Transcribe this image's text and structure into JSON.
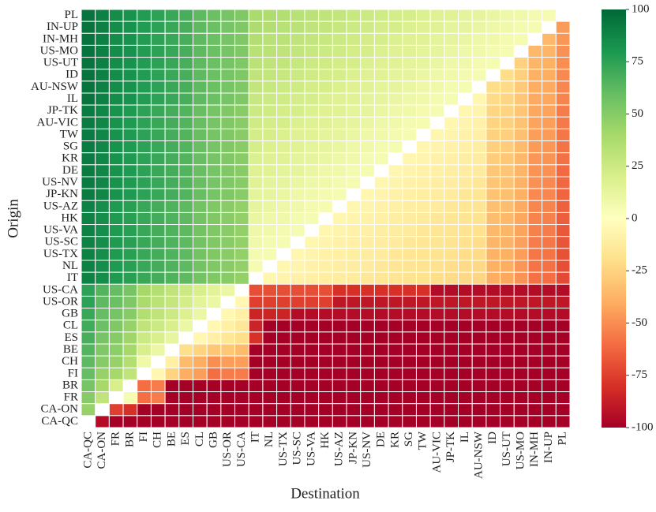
{
  "chart_data": {
    "type": "heatmap",
    "xlabel": "Destination",
    "ylabel": "Origin",
    "colormap": "RdYlGn",
    "x_categories": [
      "CA-QC",
      "CA-ON",
      "FR",
      "BR",
      "FI",
      "CH",
      "BE",
      "ES",
      "CL",
      "GB",
      "US-OR",
      "US-CA",
      "IT",
      "NL",
      "US-TX",
      "US-SC",
      "US-VA",
      "HK",
      "US-AZ",
      "JP-KN",
      "US-NV",
      "DE",
      "KR",
      "SG",
      "TW",
      "AU-VIC",
      "JP-TK",
      "IL",
      "AU-NSW",
      "ID",
      "US-UT",
      "US-MO",
      "IN-MH",
      "IN-UP",
      "PL"
    ],
    "y_categories": [
      "PL",
      "IN-UP",
      "IN-MH",
      "US-MO",
      "US-UT",
      "ID",
      "AU-NSW",
      "IL",
      "JP-TK",
      "AU-VIC",
      "TW",
      "SG",
      "KR",
      "DE",
      "US-NV",
      "JP-KN",
      "US-AZ",
      "HK",
      "US-VA",
      "US-SC",
      "US-TX",
      "NL",
      "IT",
      "US-CA",
      "US-OR",
      "GB",
      "CL",
      "ES",
      "BE",
      "CH",
      "FI",
      "BR",
      "FR",
      "CA-ON",
      "CA-QC"
    ],
    "z": [
      [
        95,
        90,
        85,
        82,
        78,
        75,
        72,
        68,
        62,
        58,
        55,
        52,
        38,
        37,
        35,
        33,
        32,
        30,
        29,
        27,
        25,
        24,
        22,
        21,
        19,
        17,
        16,
        14,
        13,
        11,
        9,
        8,
        6,
        5,
        null
      ],
      [
        95,
        90,
        85,
        82,
        78,
        75,
        72,
        68,
        62,
        58,
        55,
        52,
        37,
        35,
        33,
        32,
        30,
        29,
        27,
        25,
        24,
        22,
        21,
        19,
        17,
        16,
        14,
        13,
        11,
        9,
        8,
        6,
        5,
        null,
        -46
      ],
      [
        95,
        90,
        85,
        82,
        78,
        75,
        72,
        68,
        62,
        58,
        55,
        52,
        35,
        33,
        32,
        30,
        29,
        27,
        25,
        24,
        22,
        21,
        19,
        17,
        16,
        14,
        13,
        11,
        9,
        8,
        6,
        5,
        null,
        -36,
        -47
      ],
      [
        95,
        90,
        85,
        82,
        78,
        75,
        72,
        68,
        62,
        58,
        55,
        52,
        33,
        32,
        30,
        29,
        27,
        25,
        24,
        22,
        21,
        19,
        17,
        16,
        14,
        13,
        11,
        9,
        8,
        6,
        5,
        null,
        -36,
        -37,
        -49
      ],
      [
        95,
        90,
        85,
        82,
        78,
        75,
        72,
        68,
        62,
        58,
        55,
        52,
        32,
        30,
        29,
        27,
        25,
        24,
        22,
        21,
        19,
        17,
        16,
        14,
        13,
        11,
        9,
        8,
        6,
        5,
        null,
        -26,
        -37,
        -39,
        -50
      ],
      [
        95,
        90,
        85,
        82,
        78,
        75,
        72,
        68,
        62,
        58,
        55,
        52,
        30,
        29,
        27,
        25,
        24,
        22,
        21,
        19,
        17,
        16,
        14,
        13,
        11,
        9,
        8,
        6,
        5,
        null,
        -21,
        -27,
        -39,
        -40,
        -51
      ],
      [
        95,
        90,
        85,
        82,
        78,
        75,
        72,
        68,
        62,
        58,
        55,
        52,
        29,
        27,
        25,
        24,
        22,
        21,
        19,
        17,
        16,
        14,
        13,
        11,
        9,
        8,
        6,
        5,
        null,
        -21,
        -22,
        -29,
        -40,
        -41,
        -52
      ],
      [
        95,
        90,
        85,
        82,
        78,
        75,
        72,
        68,
        62,
        58,
        55,
        52,
        27,
        25,
        24,
        22,
        21,
        19,
        17,
        16,
        14,
        13,
        11,
        9,
        8,
        6,
        5,
        null,
        -6,
        -22,
        -24,
        -30,
        -41,
        -42,
        -53
      ],
      [
        92,
        87,
        82,
        79,
        75,
        72,
        69,
        65,
        59,
        55,
        52,
        49,
        25,
        24,
        22,
        21,
        19,
        17,
        16,
        14,
        13,
        11,
        9,
        8,
        6,
        5,
        null,
        -6,
        -7,
        -24,
        -25,
        -31,
        -42,
        -43,
        -55
      ],
      [
        92,
        87,
        82,
        79,
        75,
        72,
        69,
        65,
        59,
        55,
        52,
        49,
        24,
        22,
        21,
        19,
        17,
        16,
        14,
        13,
        11,
        9,
        8,
        6,
        5,
        null,
        -6,
        -7,
        -9,
        -25,
        -26,
        -32,
        -43,
        -45,
        -56
      ],
      [
        92,
        87,
        82,
        79,
        75,
        72,
        69,
        65,
        59,
        55,
        52,
        49,
        22,
        21,
        19,
        17,
        16,
        14,
        13,
        11,
        9,
        8,
        6,
        5,
        null,
        -6,
        -7,
        -9,
        -10,
        -26,
        -27,
        -33,
        -45,
        -46,
        -57
      ],
      [
        92,
        87,
        82,
        79,
        75,
        72,
        69,
        65,
        59,
        55,
        52,
        49,
        21,
        19,
        17,
        16,
        14,
        13,
        11,
        9,
        8,
        6,
        5,
        null,
        -6,
        -7,
        -9,
        -10,
        -11,
        -27,
        -28,
        -35,
        -46,
        -47,
        -58
      ],
      [
        92,
        87,
        82,
        79,
        75,
        72,
        69,
        65,
        59,
        55,
        52,
        49,
        19,
        17,
        16,
        14,
        13,
        11,
        9,
        8,
        6,
        5,
        null,
        -6,
        -7,
        -9,
        -10,
        -11,
        -12,
        -28,
        -30,
        -36,
        -47,
        -48,
        -59
      ],
      [
        92,
        87,
        82,
        79,
        75,
        72,
        69,
        65,
        59,
        55,
        52,
        49,
        17,
        16,
        14,
        13,
        11,
        9,
        8,
        6,
        5,
        null,
        -6,
        -7,
        -9,
        -10,
        -11,
        -12,
        -13,
        -30,
        -31,
        -37,
        -48,
        -49,
        -61
      ],
      [
        92,
        87,
        82,
        79,
        75,
        72,
        69,
        65,
        59,
        55,
        52,
        49,
        16,
        14,
        13,
        11,
        9,
        8,
        6,
        5,
        null,
        -6,
        -7,
        -9,
        -10,
        -11,
        -12,
        -13,
        -15,
        -31,
        -32,
        -38,
        -49,
        -51,
        -62
      ],
      [
        92,
        87,
        82,
        79,
        75,
        72,
        69,
        65,
        59,
        55,
        52,
        49,
        14,
        13,
        11,
        9,
        8,
        6,
        5,
        null,
        -6,
        -7,
        -9,
        -10,
        -11,
        -12,
        -13,
        -15,
        -16,
        -32,
        -33,
        -39,
        -51,
        -52,
        -63
      ],
      [
        89,
        84,
        79,
        76,
        72,
        69,
        66,
        62,
        56,
        52,
        49,
        46,
        13,
        11,
        9,
        8,
        6,
        5,
        null,
        -6,
        -7,
        -9,
        -10,
        -11,
        -12,
        -13,
        -15,
        -16,
        -17,
        -33,
        -34,
        -41,
        -52,
        -53,
        -64
      ],
      [
        89,
        84,
        79,
        76,
        72,
        69,
        66,
        62,
        56,
        52,
        49,
        46,
        11,
        9,
        8,
        6,
        5,
        null,
        -6,
        -7,
        -9,
        -10,
        -11,
        -12,
        -13,
        -15,
        -16,
        -17,
        -18,
        -34,
        -36,
        -42,
        -53,
        -54,
        -65
      ],
      [
        89,
        84,
        79,
        76,
        72,
        69,
        66,
        62,
        56,
        52,
        49,
        46,
        9,
        8,
        6,
        5,
        null,
        -6,
        -7,
        -9,
        -10,
        -11,
        -12,
        -13,
        -15,
        -16,
        -17,
        -18,
        -19,
        -36,
        -37,
        -43,
        -54,
        -55,
        -67
      ],
      [
        89,
        84,
        79,
        76,
        72,
        69,
        66,
        62,
        56,
        52,
        49,
        46,
        8,
        6,
        5,
        null,
        -6,
        -7,
        -9,
        -10,
        -11,
        -12,
        -13,
        -15,
        -16,
        -17,
        -18,
        -19,
        -21,
        -37,
        -38,
        -44,
        -55,
        -57,
        -68
      ],
      [
        89,
        84,
        79,
        76,
        72,
        69,
        66,
        62,
        56,
        52,
        49,
        46,
        6,
        5,
        null,
        -6,
        -7,
        -9,
        -10,
        -11,
        -12,
        -13,
        -15,
        -16,
        -17,
        -18,
        -19,
        -21,
        -22,
        -38,
        -39,
        -45,
        -57,
        -58,
        -69
      ],
      [
        89,
        84,
        79,
        76,
        72,
        69,
        66,
        62,
        56,
        52,
        49,
        46,
        5,
        null,
        -6,
        -7,
        -9,
        -10,
        -11,
        -12,
        -13,
        -15,
        -16,
        -17,
        -18,
        -19,
        -21,
        -22,
        -23,
        -39,
        -40,
        -47,
        -58,
        -59,
        -70
      ],
      [
        89,
        84,
        79,
        76,
        72,
        69,
        66,
        62,
        56,
        52,
        49,
        46,
        null,
        -6,
        -7,
        -9,
        -10,
        -11,
        -12,
        -13,
        -15,
        -16,
        -17,
        -18,
        -19,
        -21,
        -22,
        -23,
        -24,
        -40,
        -42,
        -48,
        -59,
        -60,
        -71
      ],
      [
        75,
        65,
        60,
        55,
        40,
        35,
        30,
        25,
        20,
        15,
        10,
        null,
        -70,
        -70,
        -70,
        -70,
        -70,
        -70,
        -80,
        -80,
        -80,
        -80,
        -80,
        -80,
        -80,
        -95,
        -95,
        -95,
        -95,
        -95,
        -95,
        -95,
        -95,
        -95,
        -95
      ],
      [
        75,
        62,
        58,
        52,
        38,
        32,
        28,
        22,
        15,
        10,
        null,
        -5,
        -75,
        -75,
        -75,
        -75,
        -75,
        -75,
        -90,
        -90,
        -90,
        -90,
        -90,
        -90,
        -90,
        -90,
        -90,
        -90,
        -90,
        -90,
        -90,
        -90,
        -90,
        -90,
        -90
      ],
      [
        72,
        60,
        55,
        50,
        35,
        30,
        25,
        18,
        10,
        null,
        -5,
        -10,
        -85,
        -85,
        -85,
        -95,
        -95,
        -95,
        -95,
        -95,
        -95,
        -95,
        -95,
        -95,
        -95,
        -95,
        -95,
        -95,
        -95,
        -95,
        -95,
        -95,
        -95,
        -95,
        -95
      ],
      [
        70,
        58,
        52,
        45,
        30,
        25,
        20,
        10,
        null,
        -5,
        -10,
        -15,
        -85,
        -100,
        -100,
        -100,
        -100,
        -100,
        -100,
        -100,
        -100,
        -100,
        -100,
        -100,
        -100,
        -100,
        -100,
        -100,
        -100,
        -100,
        -100,
        -100,
        -100,
        -100,
        -100
      ],
      [
        68,
        55,
        50,
        42,
        25,
        20,
        12,
        null,
        -5,
        -10,
        -15,
        -20,
        -80,
        -100,
        -100,
        -100,
        -100,
        -100,
        -100,
        -100,
        -100,
        -100,
        -100,
        -100,
        -100,
        -100,
        -100,
        -100,
        -100,
        -100,
        -100,
        -100,
        -100,
        -100,
        -100
      ],
      [
        65,
        52,
        48,
        40,
        20,
        10,
        null,
        -20,
        -25,
        -30,
        -30,
        -35,
        -100,
        -100,
        -100,
        -100,
        -100,
        -100,
        -100,
        -100,
        -100,
        -100,
        -100,
        -100,
        -100,
        -100,
        -100,
        -100,
        -100,
        -100,
        -100,
        -100,
        -100,
        -100,
        -100
      ],
      [
        62,
        50,
        45,
        35,
        8,
        null,
        -10,
        -35,
        -40,
        -50,
        -45,
        -45,
        -100,
        -100,
        -100,
        -100,
        -100,
        -100,
        -100,
        -100,
        -100,
        -100,
        -100,
        -100,
        -100,
        -100,
        -100,
        -100,
        -100,
        -100,
        -100,
        -100,
        -100,
        -100,
        -100
      ],
      [
        60,
        45,
        40,
        30,
        null,
        -5,
        -25,
        -40,
        -45,
        -60,
        -55,
        -55,
        -100,
        -100,
        -100,
        -100,
        -100,
        -100,
        -100,
        -100,
        -100,
        -100,
        -100,
        -100,
        -100,
        -100,
        -100,
        -100,
        -100,
        -100,
        -100,
        -100,
        -100,
        -100,
        -100
      ],
      [
        55,
        40,
        20,
        null,
        -60,
        -55,
        -100,
        -100,
        -100,
        -100,
        -100,
        -100,
        -100,
        -100,
        -100,
        -100,
        -100,
        -100,
        -100,
        -100,
        -100,
        -100,
        -100,
        -100,
        -100,
        -100,
        -100,
        -100,
        -100,
        -100,
        -100,
        -100,
        -100,
        -100,
        -100
      ],
      [
        50,
        30,
        null,
        5,
        -60,
        -55,
        -100,
        -100,
        -100,
        -100,
        -100,
        -100,
        -100,
        -100,
        -100,
        -100,
        -100,
        -100,
        -100,
        -100,
        -100,
        -100,
        -100,
        -100,
        -100,
        -100,
        -100,
        -100,
        -100,
        -100,
        -100,
        -100,
        -100,
        -100,
        -100
      ],
      [
        45,
        null,
        -75,
        -80,
        -100,
        -100,
        -100,
        -100,
        -100,
        -100,
        -100,
        -100,
        -100,
        -100,
        -100,
        -100,
        -100,
        -100,
        -100,
        -100,
        -100,
        -100,
        -100,
        -100,
        -100,
        -100,
        -100,
        -100,
        -100,
        -100,
        -100,
        -100,
        -100,
        -100,
        -100
      ],
      [
        null,
        -95,
        -100,
        -100,
        -100,
        -100,
        -100,
        -100,
        -100,
        -100,
        -100,
        -100,
        -100,
        -100,
        -100,
        -100,
        -100,
        -100,
        -100,
        -100,
        -100,
        -100,
        -100,
        -100,
        -100,
        -100,
        -100,
        -100,
        -100,
        -100,
        -100,
        -100,
        -100,
        -100,
        -100
      ]
    ],
    "zlim": [
      -100,
      100
    ],
    "colorbar_ticks": [
      -100,
      -75,
      -50,
      -25,
      0,
      25,
      50,
      75,
      100
    ]
  }
}
